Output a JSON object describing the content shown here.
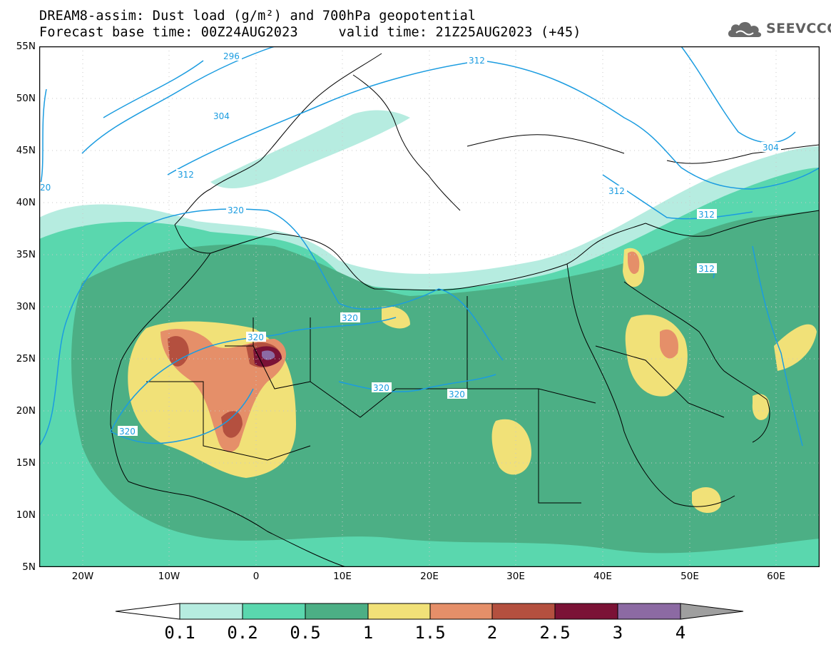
{
  "title_line1": "DREAM8-assim: Dust load (g/m²) and 700hPa geopotential",
  "title_line2": "Forecast base time: 00Z24AUG2023     valid time: 21Z25AUG2023 (+45)",
  "logo_text": "SEEVCCC",
  "map": {
    "lon_range": [
      -25,
      65
    ],
    "lat_range": [
      5,
      55
    ],
    "lat_labels": [
      "55N",
      "50N",
      "45N",
      "40N",
      "35N",
      "30N",
      "25N",
      "20N",
      "15N",
      "10N",
      "5N"
    ],
    "lon_labels": [
      "20W",
      "10W",
      "0",
      "10E",
      "20E",
      "30E",
      "40E",
      "50E",
      "60E"
    ],
    "contour_labels": [
      "296",
      "304",
      "312",
      "312",
      "320",
      "320",
      "320",
      "320",
      "320",
      "320",
      "312",
      "312",
      "312",
      "304",
      "20"
    ]
  },
  "colorbar": {
    "labels": [
      "0.1",
      "0.2",
      "0.5",
      "1",
      "1.5",
      "2",
      "2.5",
      "3",
      "4"
    ],
    "colors": [
      "#b6ece0",
      "#5ad7ae",
      "#4caf85",
      "#f1e178",
      "#e58f69",
      "#b4503f",
      "#7b1236",
      "#8c6aa3",
      "#9f9f9f"
    ]
  }
}
